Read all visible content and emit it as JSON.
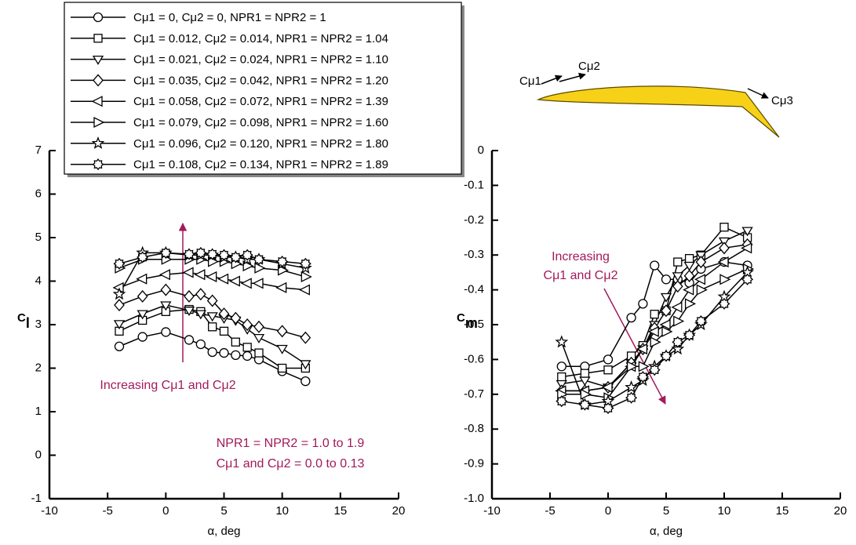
{
  "chart_data": [
    {
      "type": "line",
      "xlabel": "α, deg",
      "ylabel": "Cl",
      "x": [
        -4,
        -2,
        0,
        2,
        3,
        4,
        5,
        6,
        7,
        8,
        10,
        12
      ],
      "xlim": [
        -10,
        20
      ],
      "xticks": [
        -10,
        -5,
        0,
        5,
        10,
        15,
        20
      ],
      "ylim": [
        -1,
        7
      ],
      "yticks": [
        -1,
        0,
        1,
        2,
        3,
        4,
        5,
        6,
        7
      ],
      "annotations": [
        "Increasing Cμ1 and Cμ2",
        "NPR1 = NPR2 = 1.0 to 1.9",
        "Cμ1 and Cμ2 = 0.0 to 0.13"
      ],
      "series": [
        {
          "name": "Cμ1 = 0, Cμ2 = 0, NPR1 = NPR2 = 1",
          "marker": "circle",
          "color": "#000000",
          "values": [
            2.5,
            2.72,
            2.83,
            2.65,
            2.55,
            2.37,
            2.35,
            2.3,
            2.28,
            2.2,
            1.93,
            1.7
          ]
        },
        {
          "name": "Cμ1 = 0.012, Cμ2 = 0.014, NPR1 = NPR2 = 1.04",
          "marker": "square",
          "color": "#000000",
          "values": [
            2.85,
            3.1,
            3.3,
            3.35,
            3.3,
            2.95,
            2.85,
            2.6,
            2.48,
            2.35,
            2.0,
            2.0
          ]
        },
        {
          "name": "Cμ1 = 0.021, Cμ2 = 0.024, NPR1 = NPR2 = 1.10",
          "marker": "triangle-down",
          "color": "#000000",
          "values": [
            3.02,
            3.25,
            3.45,
            3.33,
            3.25,
            3.2,
            3.15,
            3.1,
            2.9,
            2.7,
            2.45,
            2.1
          ]
        },
        {
          "name": "Cμ1 = 0.035, Cμ2 = 0.042, NPR1 = NPR2 = 1.20",
          "marker": "diamond",
          "color": "#000000",
          "values": [
            3.45,
            3.65,
            3.8,
            3.65,
            3.7,
            3.55,
            3.25,
            3.15,
            3.0,
            2.95,
            2.85,
            2.7
          ]
        },
        {
          "name": "Cμ1 = 0.058, Cμ2 = 0.072, NPR1 = NPR2 = 1.39",
          "marker": "triangle-left",
          "color": "#000000",
          "values": [
            3.85,
            4.05,
            4.15,
            4.2,
            4.15,
            4.1,
            4.05,
            4.0,
            3.95,
            3.95,
            3.85,
            3.8
          ]
        },
        {
          "name": "Cμ1 = 0.079, Cμ2 = 0.098, NPR1 = NPR2 = 1.60",
          "marker": "triangle-right",
          "color": "#000000",
          "values": [
            4.3,
            4.5,
            4.5,
            4.5,
            4.5,
            4.45,
            4.45,
            4.4,
            4.35,
            4.3,
            4.25,
            4.1
          ]
        },
        {
          "name": "Cμ1 = 0.096, Cμ2 = 0.120, NPR1 = NPR2 = 1.80",
          "marker": "star",
          "color": "#000000",
          "values": [
            3.7,
            4.65,
            4.65,
            4.6,
            4.6,
            4.6,
            4.55,
            4.55,
            4.5,
            4.5,
            4.4,
            4.3
          ]
        },
        {
          "name": "Cμ1 = 0.108, Cμ2 = 0.134, NPR1 = NPR2 = 1.89",
          "marker": "gear",
          "color": "#000000",
          "values": [
            4.4,
            4.55,
            4.65,
            4.62,
            4.65,
            4.62,
            4.6,
            4.55,
            4.6,
            4.5,
            4.45,
            4.4
          ]
        }
      ]
    },
    {
      "type": "line",
      "xlabel": "α, deg",
      "ylabel": "Cm",
      "x": [
        -4,
        -2,
        0,
        2,
        3,
        4,
        5,
        6,
        7,
        8,
        10,
        12
      ],
      "xlim": [
        -10,
        20
      ],
      "xticks": [
        -10,
        -5,
        0,
        5,
        10,
        15,
        20
      ],
      "ylim": [
        -1,
        0
      ],
      "yticks": [
        {
          "value": -1,
          "label": "-1.0"
        },
        -0.9,
        -0.8,
        -0.7,
        -0.6,
        -0.5,
        -0.4,
        -0.3,
        -0.2,
        -0.1,
        0
      ],
      "annotations": [
        "Increasing",
        "Cμ1 and Cμ2"
      ],
      "airfoil_labels": [
        "Cμ1",
        "Cμ2",
        "Cμ3"
      ],
      "series": [
        {
          "marker": "circle",
          "color": "#000000",
          "values": [
            -0.62,
            -0.62,
            -0.6,
            -0.48,
            -0.44,
            -0.33,
            -0.37,
            -0.37,
            -0.38,
            -0.34,
            -0.32,
            -0.33
          ]
        },
        {
          "marker": "square",
          "color": "#000000",
          "values": [
            -0.65,
            -0.64,
            -0.63,
            -0.59,
            -0.56,
            -0.47,
            -0.46,
            -0.32,
            -0.31,
            -0.3,
            -0.22,
            -0.25
          ]
        },
        {
          "marker": "triangle-down",
          "color": "#000000",
          "values": [
            -0.67,
            -0.66,
            -0.68,
            -0.61,
            -0.57,
            -0.5,
            -0.42,
            -0.36,
            -0.33,
            -0.3,
            -0.26,
            -0.23
          ]
        },
        {
          "marker": "diamond",
          "color": "#000000",
          "values": [
            -0.69,
            -0.69,
            -0.68,
            -0.61,
            -0.57,
            -0.51,
            -0.46,
            -0.39,
            -0.36,
            -0.32,
            -0.28,
            -0.27
          ]
        },
        {
          "marker": "triangle-left",
          "color": "#000000",
          "values": [
            -0.69,
            -0.69,
            -0.68,
            -0.62,
            -0.57,
            -0.52,
            -0.5,
            -0.45,
            -0.4,
            -0.37,
            -0.32,
            -0.28
          ]
        },
        {
          "marker": "triangle-right",
          "color": "#000000",
          "values": [
            -0.7,
            -0.7,
            -0.71,
            -0.62,
            -0.62,
            -0.55,
            -0.52,
            -0.49,
            -0.44,
            -0.4,
            -0.37,
            -0.34
          ]
        },
        {
          "marker": "star",
          "color": "#000000",
          "values": [
            -0.55,
            -0.73,
            -0.72,
            -0.68,
            -0.66,
            -0.62,
            -0.59,
            -0.57,
            -0.53,
            -0.5,
            -0.42,
            -0.35
          ]
        },
        {
          "marker": "gear",
          "color": "#000000",
          "values": [
            -0.72,
            -0.73,
            -0.74,
            -0.71,
            -0.65,
            -0.63,
            -0.59,
            -0.55,
            -0.53,
            -0.49,
            -0.44,
            -0.37
          ]
        }
      ]
    }
  ]
}
